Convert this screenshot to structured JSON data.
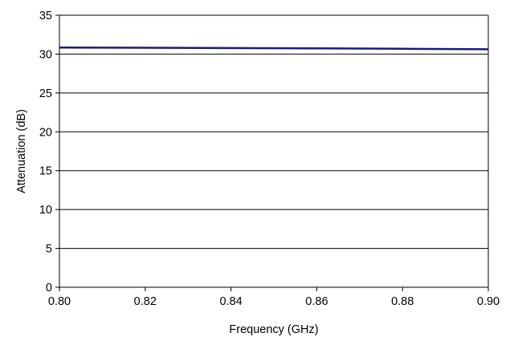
{
  "chart_data": {
    "type": "line",
    "title": "",
    "xlabel": "Frequency (GHz)",
    "ylabel": "Attenuation (dB)",
    "xlim": [
      0.8,
      0.9
    ],
    "ylim": [
      0,
      35
    ],
    "x_ticks": [
      "0.80",
      "0.82",
      "0.84",
      "0.86",
      "0.88",
      "0.90"
    ],
    "y_ticks": [
      "0",
      "5",
      "10",
      "15",
      "20",
      "25",
      "30",
      "35"
    ],
    "grid": "horizontal",
    "legend": "none",
    "series": [
      {
        "color": "#1a1a7e",
        "x": [
          0.8,
          0.82,
          0.84,
          0.86,
          0.88,
          0.9
        ],
        "y": [
          30.85,
          30.82,
          30.78,
          30.74,
          30.68,
          30.62
        ]
      }
    ]
  }
}
